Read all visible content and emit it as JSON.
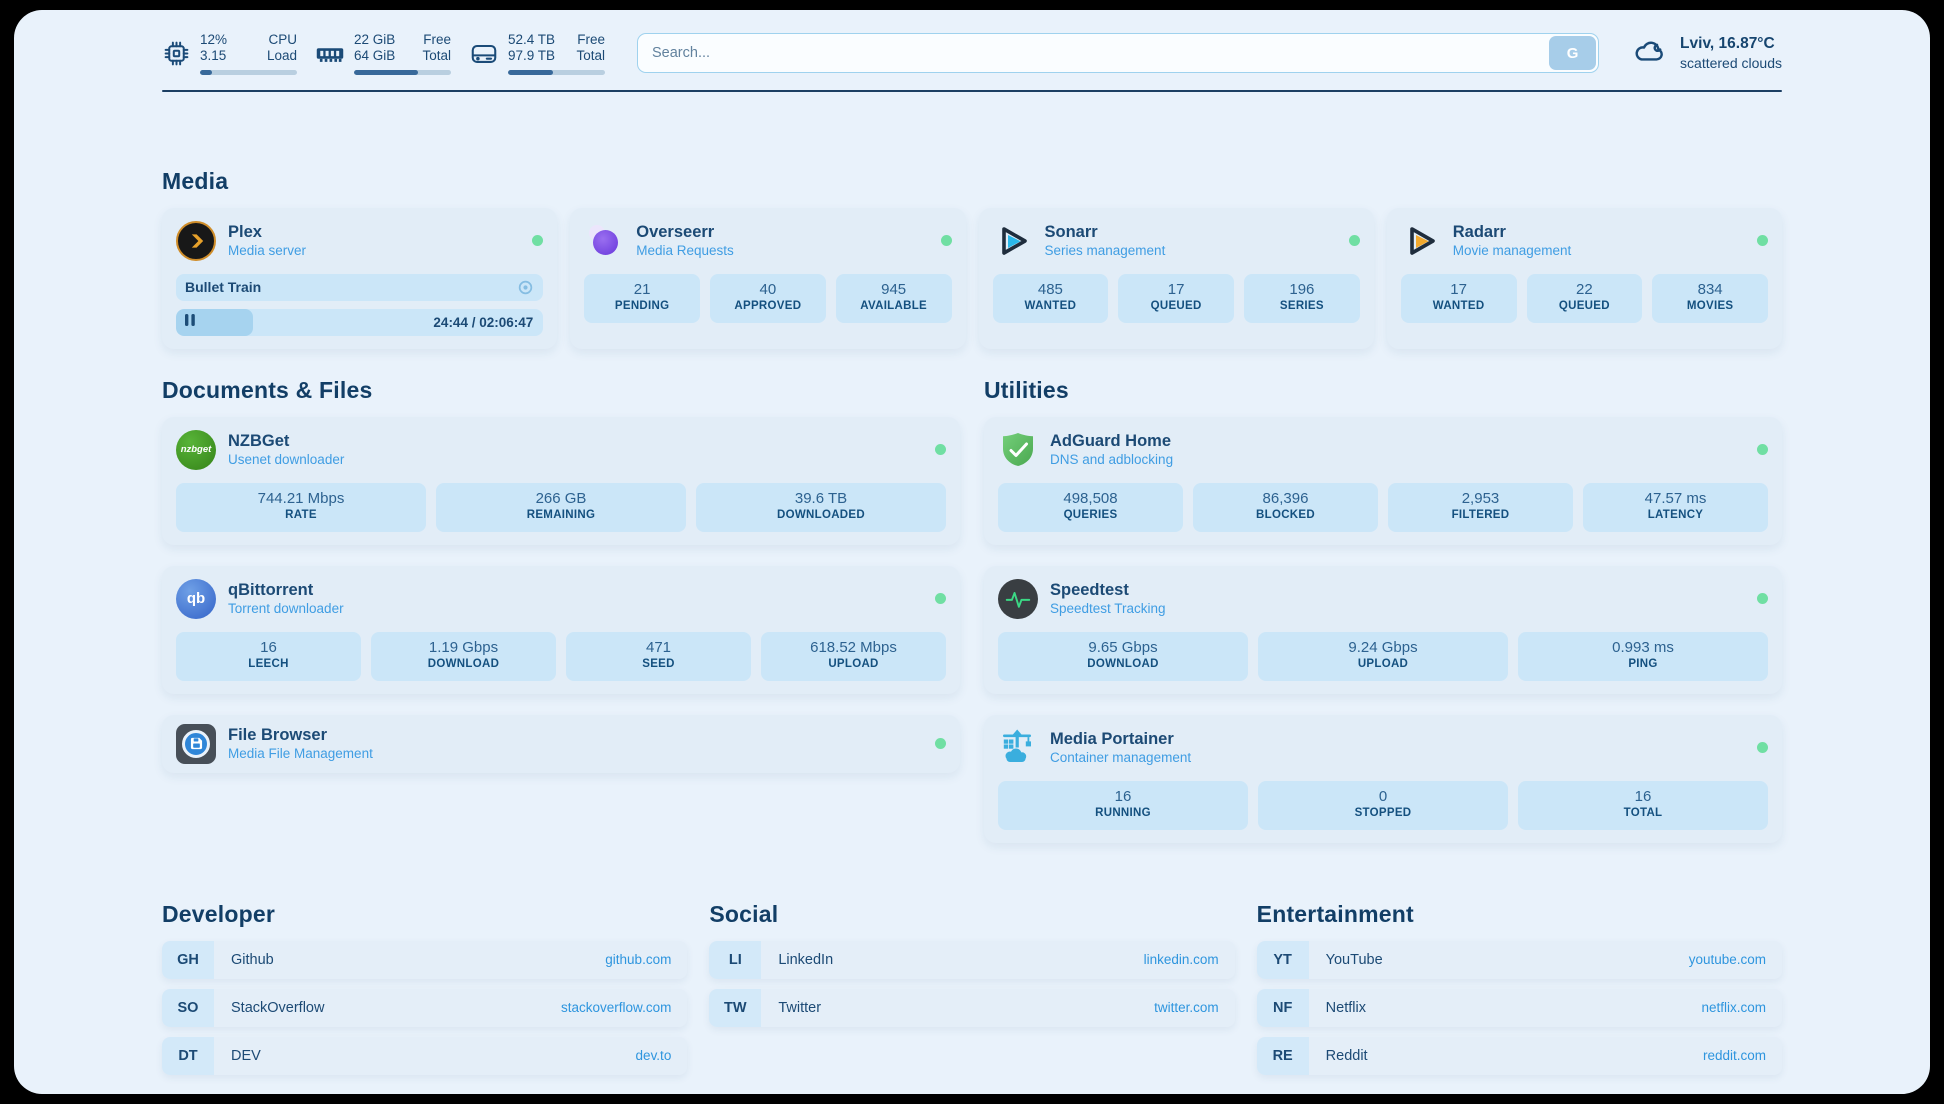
{
  "header": {
    "stats": [
      {
        "icon": "cpu-icon",
        "value_top": "12%",
        "value_bottom": "3.15",
        "label_top": "CPU",
        "label_bottom": "Load",
        "progress_pct": 12
      },
      {
        "icon": "ram-icon",
        "value_top": "22 GiB",
        "value_bottom": "64 GiB",
        "label_top": "Free",
        "label_bottom": "Total",
        "progress_pct": 66
      },
      {
        "icon": "disk-icon",
        "value_top": "52.4 TB",
        "value_bottom": "97.9 TB",
        "label_top": "Free",
        "label_bottom": "Total",
        "progress_pct": 46
      }
    ],
    "search": {
      "placeholder": "Search...",
      "button_label": "G"
    },
    "weather": {
      "location_temp": "Lviv, 16.87°C",
      "condition": "scattered clouds"
    }
  },
  "sections": {
    "media": {
      "title": "Media",
      "plex": {
        "title": "Plex",
        "subtitle": "Media server",
        "status": "online",
        "now_playing": "Bullet Train",
        "progress_pct": 21,
        "time": "24:44 / 02:06:47"
      },
      "cards": [
        {
          "title": "Overseerr",
          "subtitle": "Media Requests",
          "status": "online",
          "stats": [
            {
              "value": "21",
              "label": "PENDING"
            },
            {
              "value": "40",
              "label": "APPROVED"
            },
            {
              "value": "945",
              "label": "AVAILABLE"
            }
          ]
        },
        {
          "title": "Sonarr",
          "subtitle": "Series management",
          "status": "online",
          "stats": [
            {
              "value": "485",
              "label": "WANTED"
            },
            {
              "value": "17",
              "label": "QUEUED"
            },
            {
              "value": "196",
              "label": "SERIES"
            }
          ]
        },
        {
          "title": "Radarr",
          "subtitle": "Movie management",
          "status": "online",
          "stats": [
            {
              "value": "17",
              "label": "WANTED"
            },
            {
              "value": "22",
              "label": "QUEUED"
            },
            {
              "value": "834",
              "label": "MOVIES"
            }
          ]
        }
      ]
    },
    "documents": {
      "title": "Documents & Files",
      "cards": [
        {
          "title": "NZBGet",
          "subtitle": "Usenet downloader",
          "status": "online",
          "stats": [
            {
              "value": "744.21 Mbps",
              "label": "RATE"
            },
            {
              "value": "266 GB",
              "label": "REMAINING"
            },
            {
              "value": "39.6 TB",
              "label": "DOWNLOADED"
            }
          ]
        },
        {
          "title": "qBittorrent",
          "subtitle": "Torrent downloader",
          "status": "online",
          "stats": [
            {
              "value": "16",
              "label": "LEECH"
            },
            {
              "value": "1.19 Gbps",
              "label": "DOWNLOAD"
            },
            {
              "value": "471",
              "label": "SEED"
            },
            {
              "value": "618.52 Mbps",
              "label": "UPLOAD"
            }
          ]
        },
        {
          "title": "File Browser",
          "subtitle": "Media File Management",
          "status": "online",
          "stats": []
        }
      ]
    },
    "utilities": {
      "title": "Utilities",
      "cards": [
        {
          "title": "AdGuard Home",
          "subtitle": "DNS and adblocking",
          "status": "online",
          "stats": [
            {
              "value": "498,508",
              "label": "QUERIES"
            },
            {
              "value": "86,396",
              "label": "BLOCKED"
            },
            {
              "value": "2,953",
              "label": "FILTERED"
            },
            {
              "value": "47.57 ms",
              "label": "LATENCY"
            }
          ]
        },
        {
          "title": "Speedtest",
          "subtitle": "Speedtest Tracking",
          "status": "online",
          "stats": [
            {
              "value": "9.65 Gbps",
              "label": "DOWNLOAD"
            },
            {
              "value": "9.24 Gbps",
              "label": "UPLOAD"
            },
            {
              "value": "0.993 ms",
              "label": "PING"
            }
          ]
        },
        {
          "title": "Media Portainer",
          "subtitle": "Container management",
          "status": "online",
          "stats": [
            {
              "value": "16",
              "label": "RUNNING"
            },
            {
              "value": "0",
              "label": "STOPPED"
            },
            {
              "value": "16",
              "label": "TOTAL"
            }
          ]
        }
      ]
    },
    "bookmarks": [
      {
        "title": "Developer",
        "links": [
          {
            "abbr": "GH",
            "label": "Github",
            "url": "github.com"
          },
          {
            "abbr": "SO",
            "label": "StackOverflow",
            "url": "stackoverflow.com"
          },
          {
            "abbr": "DT",
            "label": "DEV",
            "url": "dev.to"
          }
        ]
      },
      {
        "title": "Social",
        "links": [
          {
            "abbr": "LI",
            "label": "LinkedIn",
            "url": "linkedin.com"
          },
          {
            "abbr": "TW",
            "label": "Twitter",
            "url": "twitter.com"
          }
        ]
      },
      {
        "title": "Entertainment",
        "links": [
          {
            "abbr": "YT",
            "label": "YouTube",
            "url": "youtube.com"
          },
          {
            "abbr": "NF",
            "label": "Netflix",
            "url": "netflix.com"
          },
          {
            "abbr": "RE",
            "label": "Reddit",
            "url": "reddit.com"
          }
        ]
      }
    ]
  },
  "icon_labels": {
    "nzbget": "nzbget",
    "qbittorrent": "qb"
  },
  "colors": {
    "page_bg": "#e9f2fb",
    "card_bg": "#e2edf7",
    "stat_box_bg": "#cbe6f8",
    "navy_text": "#1c4a75",
    "subtitle_blue": "#3f9de3",
    "url_blue": "#2e95de",
    "status_green": "#70dfa3",
    "bar_fill": "#38699a"
  }
}
